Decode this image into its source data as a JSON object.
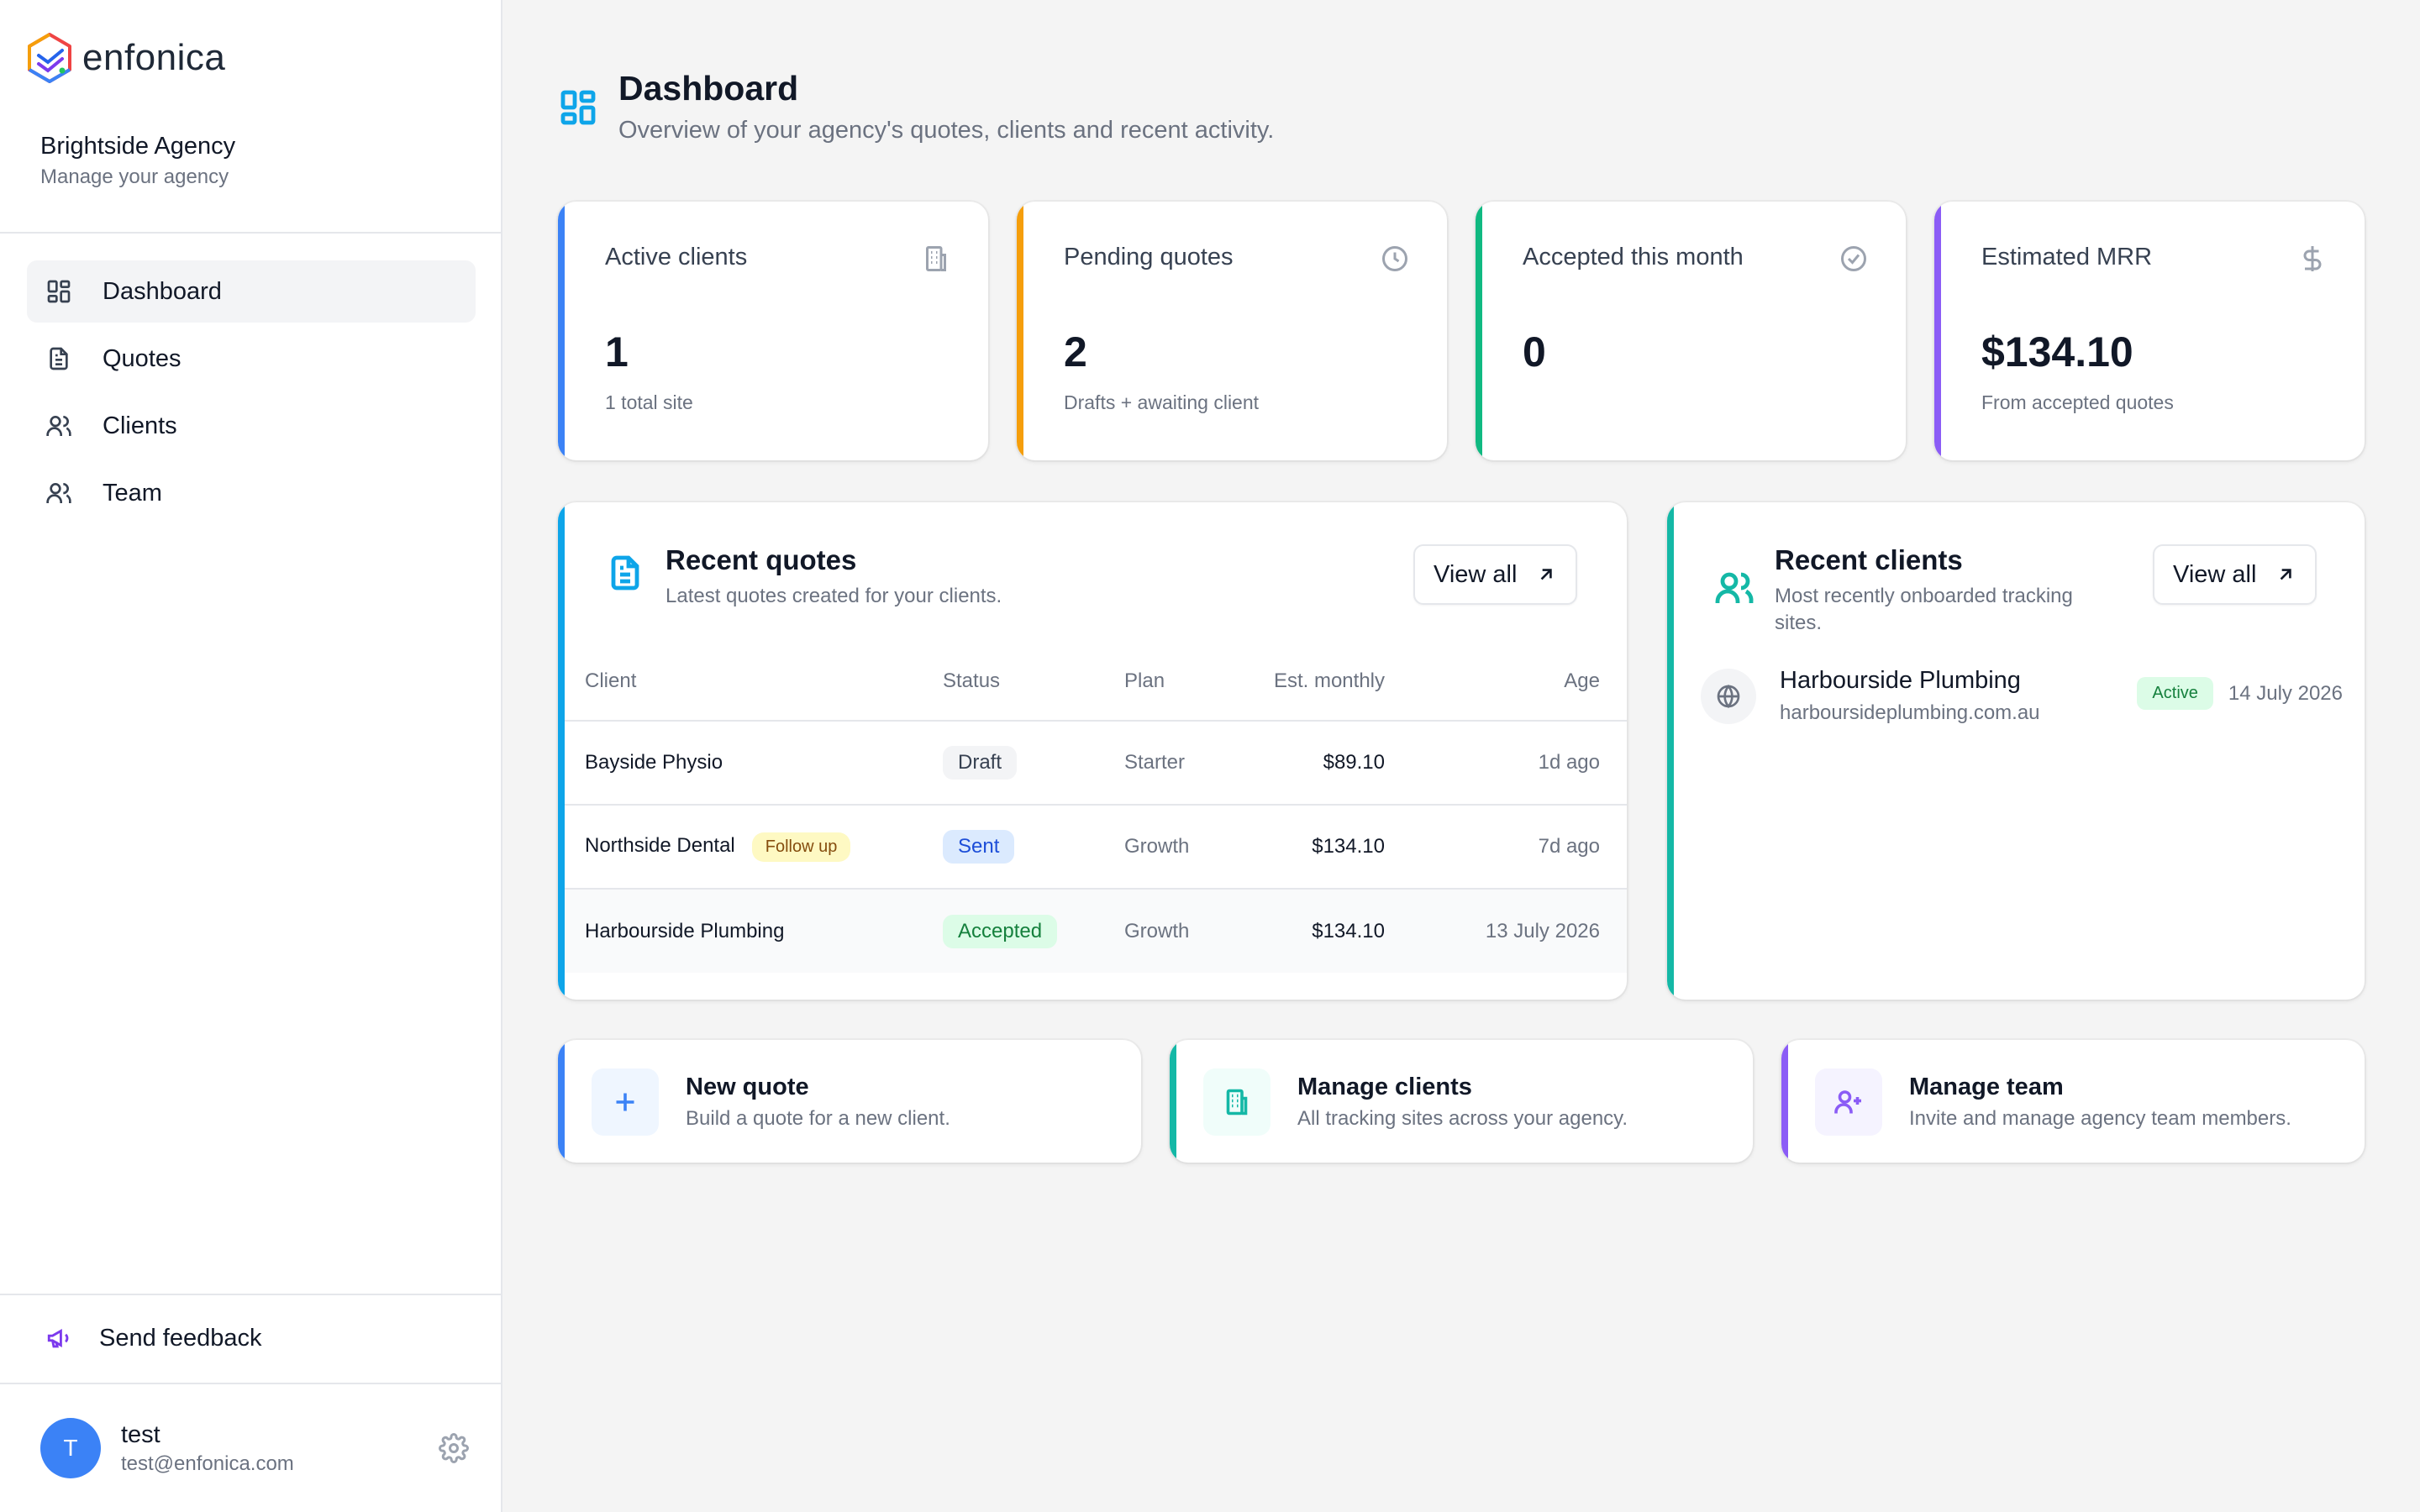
{
  "brand": {
    "name": "enfonica"
  },
  "org": {
    "name": "Brightside Agency",
    "subtitle": "Manage your agency"
  },
  "nav": [
    {
      "label": "Dashboard",
      "icon": "grid-icon",
      "active": true
    },
    {
      "label": "Quotes",
      "icon": "document-icon",
      "active": false
    },
    {
      "label": "Clients",
      "icon": "users-icon",
      "active": false
    },
    {
      "label": "Team",
      "icon": "users-icon",
      "active": false
    }
  ],
  "feedback": {
    "label": "Send feedback",
    "icon": "megaphone-icon"
  },
  "user": {
    "initial": "T",
    "name": "test",
    "email": "test@enfonica.com"
  },
  "page": {
    "title": "Dashboard",
    "subtitle": "Overview of your agency's quotes, clients and recent activity."
  },
  "stats": [
    {
      "label": "Active clients",
      "value": "1",
      "sub": "1 total site",
      "icon": "building-icon",
      "accent": "#3b82f6"
    },
    {
      "label": "Pending quotes",
      "value": "2",
      "sub": "Drafts + awaiting client",
      "icon": "clock-icon",
      "accent": "#f59e0b"
    },
    {
      "label": "Accepted this month",
      "value": "0",
      "sub": "",
      "icon": "check-circle-icon",
      "accent": "#10b981"
    },
    {
      "label": "Estimated MRR",
      "value": "$134.10",
      "sub": "From accepted quotes",
      "icon": "dollar-icon",
      "accent": "#8b5cf6"
    }
  ],
  "recent_quotes": {
    "title": "Recent quotes",
    "subtitle": "Latest quotes created for your clients.",
    "view_all": "View all",
    "accent": "#0ea5e9",
    "columns": [
      "Client",
      "Status",
      "Plan",
      "Est. monthly",
      "Age"
    ],
    "rows": [
      {
        "client": "Bayside Physio",
        "tag": "",
        "status": "Draft",
        "plan": "Starter",
        "monthly": "$89.10",
        "age": "1d ago"
      },
      {
        "client": "Northside Dental",
        "tag": "Follow up",
        "status": "Sent",
        "plan": "Growth",
        "monthly": "$134.10",
        "age": "7d ago"
      },
      {
        "client": "Harbourside Plumbing",
        "tag": "",
        "status": "Accepted",
        "plan": "Growth",
        "monthly": "$134.10",
        "age": "13 July 2026"
      }
    ]
  },
  "recent_clients": {
    "title": "Recent clients",
    "subtitle_line1": "Most recently onboarded tracking",
    "subtitle_line2": "sites.",
    "view_all": "View all",
    "accent": "#14b8a6",
    "items": [
      {
        "name": "Harbourside Plumbing",
        "domain": "harboursideplumbing.com.au",
        "status": "Active",
        "date": "14 July 2026"
      }
    ]
  },
  "actions": [
    {
      "title": "New quote",
      "subtitle": "Build a quote for a new client.",
      "icon": "plus-icon",
      "accent": "#3b82f6",
      "tint": "#eff6ff"
    },
    {
      "title": "Manage clients",
      "subtitle": "All tracking sites across your agency.",
      "icon": "building-icon",
      "accent": "#14b8a6",
      "tint": "#f0fdfa"
    },
    {
      "title": "Manage team",
      "subtitle": "Invite and manage agency team members.",
      "icon": "user-plus-icon",
      "accent": "#8b5cf6",
      "tint": "#f5f3ff"
    }
  ]
}
